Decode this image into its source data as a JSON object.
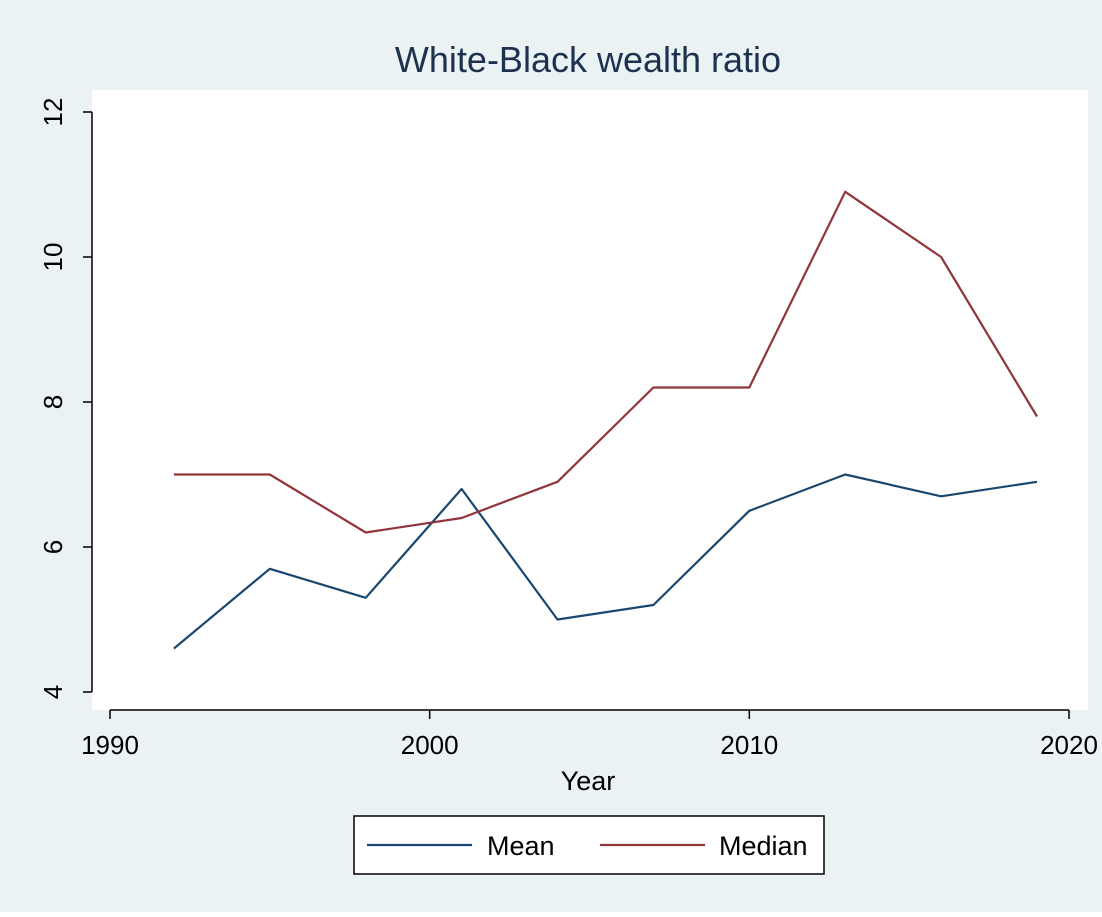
{
  "chart_data": {
    "type": "line",
    "title": "White-Black wealth ratio",
    "xlabel": "Year",
    "ylabel": "",
    "xlim": [
      1990,
      2020
    ],
    "ylim": [
      4,
      12
    ],
    "x_ticks": [
      1990,
      2000,
      2010,
      2020
    ],
    "y_ticks": [
      4,
      6,
      8,
      10,
      12
    ],
    "x_tick_labels": [
      "1990",
      "2000",
      "2010",
      "2020"
    ],
    "y_tick_labels": [
      "4",
      "6",
      "8",
      "10",
      "12"
    ],
    "grid": false,
    "legend_position": "bottom",
    "x": [
      1992,
      1995,
      1998,
      2001,
      2004,
      2007,
      2010,
      2013,
      2016,
      2019
    ],
    "series": [
      {
        "name": "Mean",
        "color": "#1a476f",
        "values": [
          4.6,
          5.7,
          5.3,
          6.8,
          5.0,
          5.2,
          6.5,
          7.0,
          6.7,
          6.9
        ]
      },
      {
        "name": "Median",
        "color": "#90353b",
        "values": [
          7.0,
          7.0,
          6.2,
          6.4,
          6.9,
          8.2,
          8.2,
          10.9,
          10.0,
          7.8
        ]
      }
    ]
  },
  "colors": {
    "figure_background": "#eaf2f3",
    "plot_background": "#ffffff",
    "axis": "#000000",
    "title": "#1e3250"
  }
}
